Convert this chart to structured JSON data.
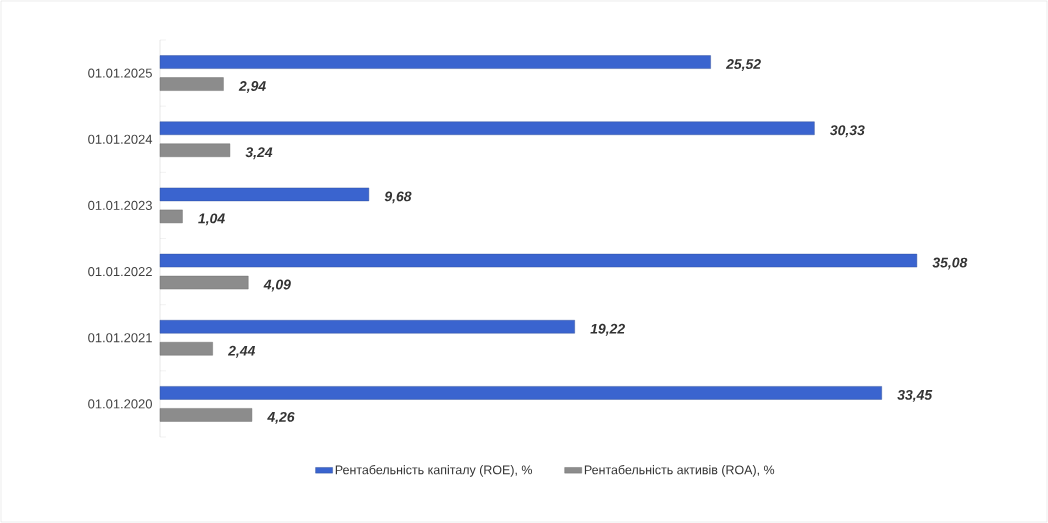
{
  "chart_data": {
    "type": "bar",
    "orientation": "horizontal",
    "categories": [
      "01.01.2025",
      "01.01.2024",
      "01.01.2023",
      "01.01.2022",
      "01.01.2021",
      "01.01.2020"
    ],
    "series": [
      {
        "name": "Рентабельність капіталу (ROE), %",
        "color": "#3a64cf",
        "values": [
          25.52,
          30.33,
          9.68,
          35.08,
          19.22,
          33.45
        ],
        "value_labels": [
          "25,52",
          "30,33",
          "9,68",
          "35,08",
          "19,22",
          "33,45"
        ]
      },
      {
        "name": "Рентабельність активів (ROA), %",
        "color": "#8c8c8c",
        "values": [
          2.94,
          3.24,
          1.04,
          4.09,
          2.44,
          4.26
        ],
        "value_labels": [
          "2,94",
          "3,24",
          "1,04",
          "4,09",
          "2,44",
          "4,26"
        ]
      }
    ],
    "legend": "bottom",
    "tick_labels": "y"
  }
}
